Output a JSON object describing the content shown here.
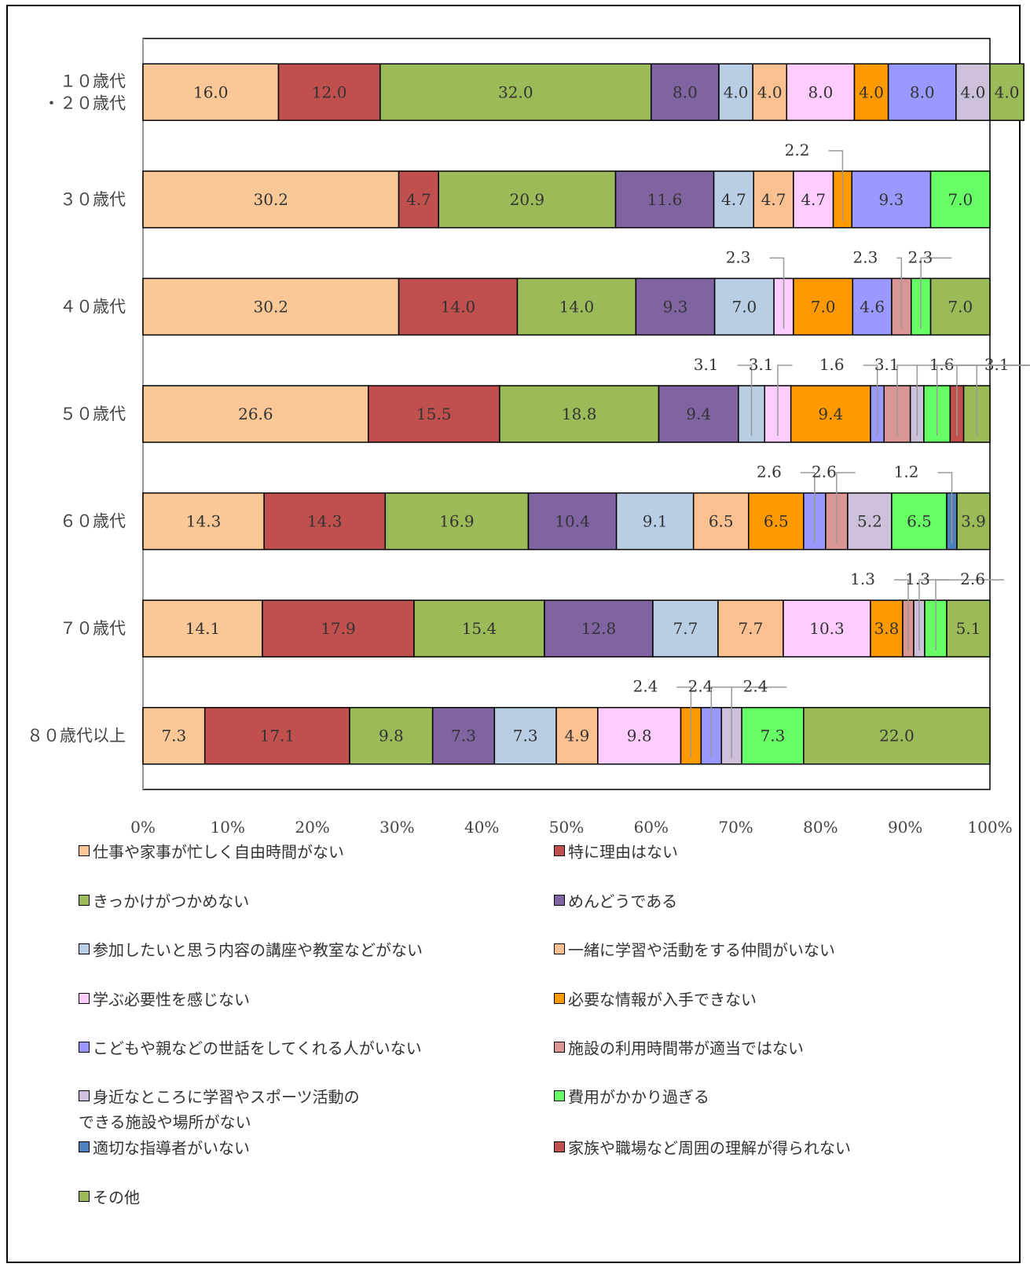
{
  "chart_data": {
    "type": "bar",
    "orientation": "horizontal-stacked-100",
    "categories": [
      "１０歳代\n・２０歳代",
      "３０歳代",
      "４０歳代",
      "５０歳代",
      "６０歳代",
      "７０歳代",
      "８０歳代以上"
    ],
    "x_ticks": [
      "0%",
      "10%",
      "20%",
      "30%",
      "40%",
      "50%",
      "60%",
      "70%",
      "80%",
      "90%",
      "100%"
    ],
    "xlim": [
      0,
      100
    ],
    "legend_position": "bottom",
    "series": [
      {
        "name": "仕事や家事が忙しく自由時間がない",
        "color": "#FAC896",
        "values": [
          16.0,
          30.2,
          30.2,
          26.6,
          14.3,
          14.1,
          7.3
        ]
      },
      {
        "name": "特に理由はない",
        "color": "#C0504D",
        "values": [
          12.0,
          4.7,
          14.0,
          15.5,
          14.3,
          17.9,
          17.1
        ]
      },
      {
        "name": "きっかけがつかめない",
        "color": "#9BBB59",
        "values": [
          32.0,
          20.9,
          14.0,
          18.8,
          16.9,
          15.4,
          9.8
        ]
      },
      {
        "name": "めんどうである",
        "color": "#8064A2",
        "values": [
          8.0,
          11.6,
          9.3,
          9.4,
          10.4,
          12.8,
          7.3
        ]
      },
      {
        "name": "参加したいと思う内容の講座や教室などがない",
        "color": "#B9CDE5",
        "values": [
          4.0,
          4.7,
          7.0,
          3.1,
          9.1,
          7.7,
          7.3
        ]
      },
      {
        "name": "一緒に学習や活動をする仲間がいない",
        "color": "#FAC090",
        "values": [
          4.0,
          4.7,
          0,
          0,
          6.5,
          7.7,
          4.9
        ]
      },
      {
        "name": "学ぶ必要性を感じない",
        "color": "#FFCCFF",
        "values": [
          8.0,
          4.7,
          2.3,
          3.1,
          0,
          10.3,
          9.8
        ]
      },
      {
        "name": "必要な情報が入手できない",
        "color": "#FF9900",
        "values": [
          4.0,
          2.2,
          7.0,
          9.4,
          6.5,
          3.8,
          2.4
        ]
      },
      {
        "name": "こどもや親などの世話をしてくれる人がいない",
        "color": "#9999FF",
        "values": [
          8.0,
          9.3,
          4.6,
          1.6,
          2.6,
          0,
          2.4
        ]
      },
      {
        "name": "施設の利用時間帯が適当ではない",
        "color": "#D99694",
        "values": [
          0,
          0,
          2.3,
          3.1,
          2.6,
          1.3,
          0
        ]
      },
      {
        "name": "身近なところに学習やスポーツ活動の\nできる施設や場所がない",
        "color": "#CCC0DA",
        "values": [
          4.0,
          0,
          0,
          1.6,
          5.2,
          1.3,
          2.4
        ]
      },
      {
        "name": "費用がかかり過ぎる",
        "color": "#66FF66",
        "values": [
          0,
          7.0,
          2.3,
          3.1,
          6.5,
          2.6,
          7.3
        ]
      },
      {
        "name": "適切な指導者がいない",
        "color": "#4F81BD",
        "values": [
          0,
          0,
          0,
          0,
          1.2,
          0,
          0
        ]
      },
      {
        "name": "家族や職場など周囲の理解が得られない",
        "color": "#C0504D",
        "values": [
          0,
          0,
          0,
          1.6,
          0,
          0,
          0
        ]
      },
      {
        "name": "その他",
        "color": "#9BBB59",
        "values": [
          4.0,
          0,
          7.0,
          3.1,
          3.9,
          5.1,
          22.0
        ]
      }
    ]
  }
}
